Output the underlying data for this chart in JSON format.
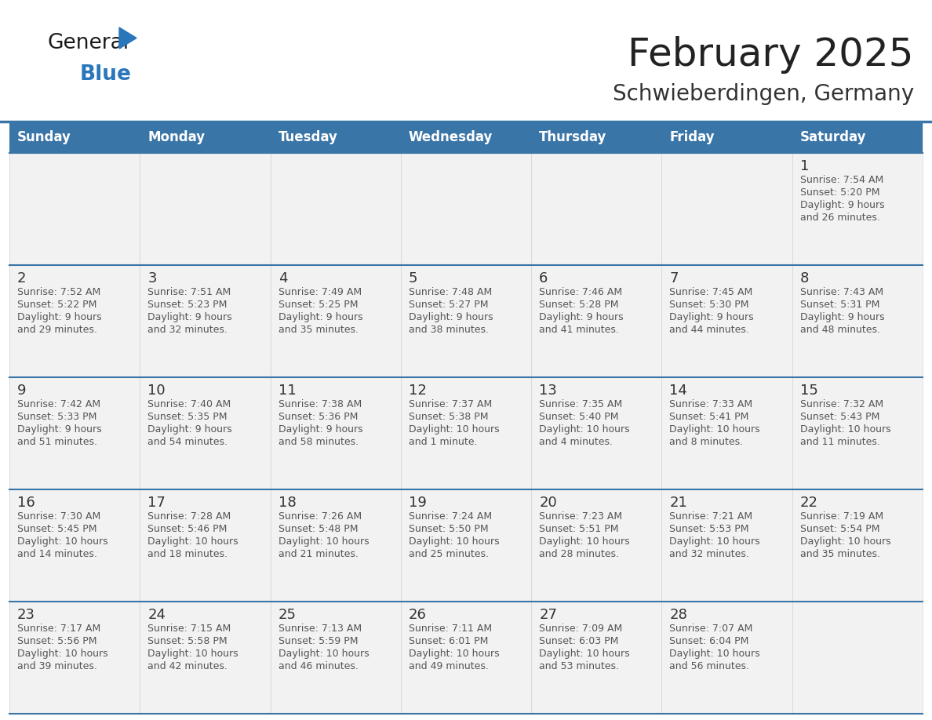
{
  "title": "February 2025",
  "subtitle": "Schwieberdingen, Germany",
  "days_of_week": [
    "Sunday",
    "Monday",
    "Tuesday",
    "Wednesday",
    "Thursday",
    "Friday",
    "Saturday"
  ],
  "header_bg": "#3A75A8",
  "header_text": "#FFFFFF",
  "cell_bg": "#F2F2F2",
  "grid_line_color": "#3A75A8",
  "day_number_color": "#333333",
  "text_color": "#555555",
  "title_color": "#222222",
  "subtitle_color": "#333333",
  "calendar": [
    [
      null,
      null,
      null,
      null,
      null,
      null,
      {
        "day": 1,
        "sunrise": "7:54 AM",
        "sunset": "5:20 PM",
        "daylight": "9 hours and 26 minutes."
      }
    ],
    [
      {
        "day": 2,
        "sunrise": "7:52 AM",
        "sunset": "5:22 PM",
        "daylight": "9 hours and 29 minutes."
      },
      {
        "day": 3,
        "sunrise": "7:51 AM",
        "sunset": "5:23 PM",
        "daylight": "9 hours and 32 minutes."
      },
      {
        "day": 4,
        "sunrise": "7:49 AM",
        "sunset": "5:25 PM",
        "daylight": "9 hours and 35 minutes."
      },
      {
        "day": 5,
        "sunrise": "7:48 AM",
        "sunset": "5:27 PM",
        "daylight": "9 hours and 38 minutes."
      },
      {
        "day": 6,
        "sunrise": "7:46 AM",
        "sunset": "5:28 PM",
        "daylight": "9 hours and 41 minutes."
      },
      {
        "day": 7,
        "sunrise": "7:45 AM",
        "sunset": "5:30 PM",
        "daylight": "9 hours and 44 minutes."
      },
      {
        "day": 8,
        "sunrise": "7:43 AM",
        "sunset": "5:31 PM",
        "daylight": "9 hours and 48 minutes."
      }
    ],
    [
      {
        "day": 9,
        "sunrise": "7:42 AM",
        "sunset": "5:33 PM",
        "daylight": "9 hours and 51 minutes."
      },
      {
        "day": 10,
        "sunrise": "7:40 AM",
        "sunset": "5:35 PM",
        "daylight": "9 hours and 54 minutes."
      },
      {
        "day": 11,
        "sunrise": "7:38 AM",
        "sunset": "5:36 PM",
        "daylight": "9 hours and 58 minutes."
      },
      {
        "day": 12,
        "sunrise": "7:37 AM",
        "sunset": "5:38 PM",
        "daylight": "10 hours and 1 minute."
      },
      {
        "day": 13,
        "sunrise": "7:35 AM",
        "sunset": "5:40 PM",
        "daylight": "10 hours and 4 minutes."
      },
      {
        "day": 14,
        "sunrise": "7:33 AM",
        "sunset": "5:41 PM",
        "daylight": "10 hours and 8 minutes."
      },
      {
        "day": 15,
        "sunrise": "7:32 AM",
        "sunset": "5:43 PM",
        "daylight": "10 hours and 11 minutes."
      }
    ],
    [
      {
        "day": 16,
        "sunrise": "7:30 AM",
        "sunset": "5:45 PM",
        "daylight": "10 hours and 14 minutes."
      },
      {
        "day": 17,
        "sunrise": "7:28 AM",
        "sunset": "5:46 PM",
        "daylight": "10 hours and 18 minutes."
      },
      {
        "day": 18,
        "sunrise": "7:26 AM",
        "sunset": "5:48 PM",
        "daylight": "10 hours and 21 minutes."
      },
      {
        "day": 19,
        "sunrise": "7:24 AM",
        "sunset": "5:50 PM",
        "daylight": "10 hours and 25 minutes."
      },
      {
        "day": 20,
        "sunrise": "7:23 AM",
        "sunset": "5:51 PM",
        "daylight": "10 hours and 28 minutes."
      },
      {
        "day": 21,
        "sunrise": "7:21 AM",
        "sunset": "5:53 PM",
        "daylight": "10 hours and 32 minutes."
      },
      {
        "day": 22,
        "sunrise": "7:19 AM",
        "sunset": "5:54 PM",
        "daylight": "10 hours and 35 minutes."
      }
    ],
    [
      {
        "day": 23,
        "sunrise": "7:17 AM",
        "sunset": "5:56 PM",
        "daylight": "10 hours and 39 minutes."
      },
      {
        "day": 24,
        "sunrise": "7:15 AM",
        "sunset": "5:58 PM",
        "daylight": "10 hours and 42 minutes."
      },
      {
        "day": 25,
        "sunrise": "7:13 AM",
        "sunset": "5:59 PM",
        "daylight": "10 hours and 46 minutes."
      },
      {
        "day": 26,
        "sunrise": "7:11 AM",
        "sunset": "6:01 PM",
        "daylight": "10 hours and 49 minutes."
      },
      {
        "day": 27,
        "sunrise": "7:09 AM",
        "sunset": "6:03 PM",
        "daylight": "10 hours and 53 minutes."
      },
      {
        "day": 28,
        "sunrise": "7:07 AM",
        "sunset": "6:04 PM",
        "daylight": "10 hours and 56 minutes."
      },
      null
    ]
  ],
  "logo_text1": "General",
  "logo_text2": "Blue",
  "logo_color1": "#1a1a1a",
  "logo_color2": "#2976BB",
  "logo_triangle_color": "#2976BB",
  "title_fontsize": 36,
  "subtitle_fontsize": 20,
  "dow_fontsize": 12,
  "day_num_fontsize": 13,
  "cell_fontsize": 9
}
